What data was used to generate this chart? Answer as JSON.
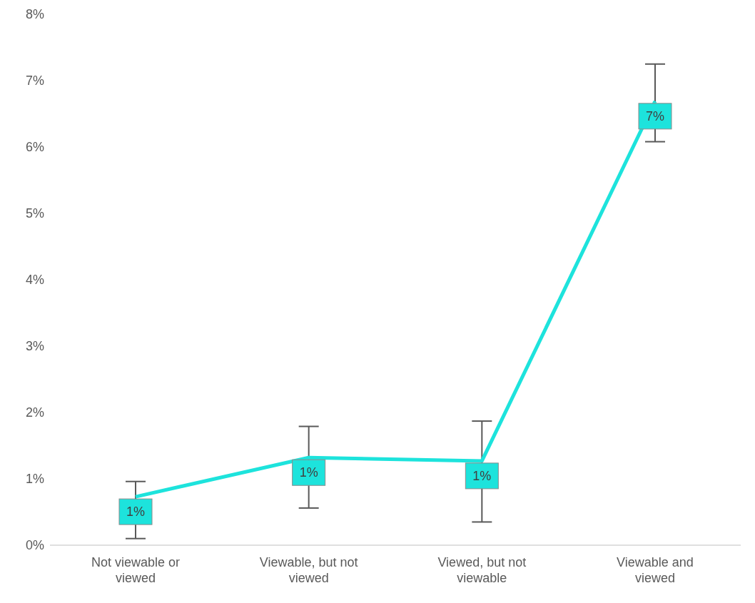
{
  "chart_data": {
    "type": "line",
    "categories": [
      "Not viewable or viewed",
      "Viewable, but not viewed",
      "Viewed, but not viewable",
      "Viewable and viewed"
    ],
    "series": [
      {
        "color": "#1de3dc",
        "values": [
          0.73,
          1.32,
          1.27,
          6.69
        ],
        "errors": [
          [
            0.1,
            0.96
          ],
          [
            0.56,
            1.79
          ],
          [
            0.35,
            1.87
          ],
          [
            6.08,
            7.25
          ]
        ],
        "value_labels": [
          "1%",
          "1%",
          "1%",
          "7%"
        ]
      }
    ],
    "ylim": [
      0,
      8
    ],
    "yticks": [
      {
        "value": 0,
        "label": "0%"
      },
      {
        "value": 1,
        "label": "1%"
      },
      {
        "value": 2,
        "label": "2%"
      },
      {
        "value": 3,
        "label": "3%"
      },
      {
        "value": 4,
        "label": "4%"
      },
      {
        "value": 5,
        "label": "5%"
      },
      {
        "value": 6,
        "label": "6%"
      },
      {
        "value": 7,
        "label": "7%"
      },
      {
        "value": 8,
        "label": "8%"
      }
    ],
    "grid": false,
    "legend": false,
    "marker": "none",
    "line_style": "solid"
  }
}
